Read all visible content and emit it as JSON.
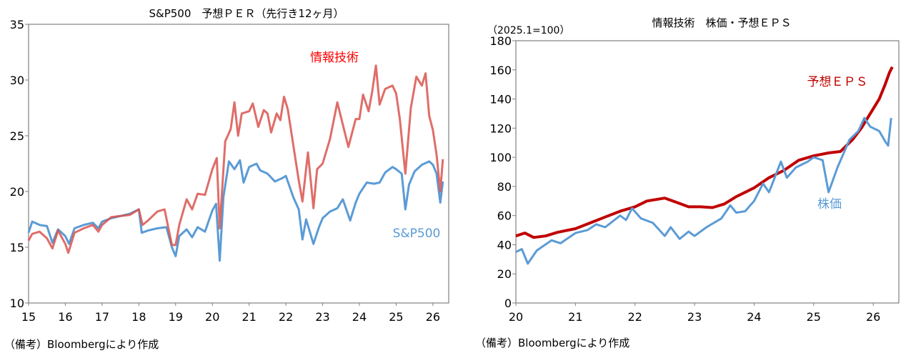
{
  "chart_data": [
    {
      "type": "line",
      "title": "S&P500　予想ＰＥＲ（先行き12ヶ月）",
      "xlabel": "",
      "ylabel": "",
      "xlim": [
        2015,
        2026.43
      ],
      "ylim": [
        10,
        35
      ],
      "yticks": [
        10,
        15,
        20,
        25,
        30,
        35
      ],
      "xticks": [
        {
          "v": 2015,
          "label": "15"
        },
        {
          "v": 2016,
          "label": "16"
        },
        {
          "v": 2017,
          "label": "17"
        },
        {
          "v": 2018,
          "label": "18"
        },
        {
          "v": 2019,
          "label": "19"
        },
        {
          "v": 2020,
          "label": "20"
        },
        {
          "v": 2021,
          "label": "21"
        },
        {
          "v": 2022,
          "label": "22"
        },
        {
          "v": 2023,
          "label": "23"
        },
        {
          "v": 2024,
          "label": "24"
        },
        {
          "v": 2025,
          "label": "25"
        },
        {
          "v": 2026,
          "label": "26"
        }
      ],
      "source": "（備考）Bloombergにより作成",
      "grid": false,
      "series": [
        {
          "name": "S&P500",
          "color": "#5b9bd5",
          "x": [
            2015.0,
            2015.1,
            2015.3,
            2015.5,
            2015.65,
            2015.8,
            2016.0,
            2016.1,
            2016.25,
            2016.5,
            2016.75,
            2016.9,
            2017.0,
            2017.25,
            2017.5,
            2017.75,
            2018.0,
            2018.08,
            2018.25,
            2018.5,
            2018.75,
            2018.9,
            2019.0,
            2019.1,
            2019.3,
            2019.45,
            2019.6,
            2019.8,
            2020.0,
            2020.1,
            2020.2,
            2020.3,
            2020.45,
            2020.6,
            2020.75,
            2020.85,
            2021.0,
            2021.2,
            2021.3,
            2021.5,
            2021.7,
            2021.9,
            2022.0,
            2022.2,
            2022.35,
            2022.45,
            2022.55,
            2022.75,
            2022.9,
            2023.0,
            2023.2,
            2023.4,
            2023.55,
            2023.75,
            2023.9,
            2024.0,
            2024.2,
            2024.4,
            2024.55,
            2024.7,
            2024.9,
            2025.0,
            2025.15,
            2025.25,
            2025.35,
            2025.5,
            2025.7,
            2025.9,
            2026.0,
            2026.1,
            2026.2,
            2026.27
          ],
          "y": [
            16.3,
            17.3,
            17.0,
            16.9,
            15.4,
            16.6,
            16.0,
            15.3,
            16.7,
            17.0,
            17.2,
            16.7,
            17.3,
            17.6,
            17.8,
            18.0,
            18.4,
            16.3,
            16.5,
            16.7,
            16.8,
            15.0,
            14.2,
            16.0,
            16.6,
            15.9,
            16.8,
            16.4,
            18.3,
            18.9,
            13.8,
            19.5,
            22.7,
            22.0,
            22.8,
            20.8,
            22.2,
            22.5,
            21.9,
            21.6,
            20.9,
            21.2,
            21.4,
            19.5,
            18.4,
            15.7,
            17.5,
            15.3,
            16.8,
            17.6,
            18.2,
            18.5,
            19.3,
            17.4,
            19.0,
            19.8,
            20.8,
            20.7,
            20.8,
            21.7,
            22.2,
            22.0,
            21.6,
            18.4,
            20.6,
            21.8,
            22.4,
            22.7,
            22.4,
            21.6,
            19.0,
            20.9
          ]
        },
        {
          "name": "情報技術",
          "color": "#d9534f",
          "x": [
            2015.0,
            2015.1,
            2015.3,
            2015.5,
            2015.65,
            2015.8,
            2016.0,
            2016.08,
            2016.25,
            2016.5,
            2016.75,
            2016.9,
            2017.0,
            2017.25,
            2017.5,
            2017.75,
            2018.0,
            2018.1,
            2018.25,
            2018.5,
            2018.7,
            2018.9,
            2019.0,
            2019.1,
            2019.3,
            2019.45,
            2019.6,
            2019.8,
            2020.0,
            2020.12,
            2020.2,
            2020.35,
            2020.5,
            2020.6,
            2020.7,
            2020.8,
            2021.0,
            2021.1,
            2021.25,
            2021.4,
            2021.5,
            2021.6,
            2021.75,
            2021.85,
            2021.95,
            2022.05,
            2022.2,
            2022.35,
            2022.45,
            2022.6,
            2022.75,
            2022.85,
            2023.0,
            2023.2,
            2023.4,
            2023.55,
            2023.7,
            2023.9,
            2024.0,
            2024.1,
            2024.25,
            2024.35,
            2024.45,
            2024.55,
            2024.7,
            2024.9,
            2025.0,
            2025.1,
            2025.25,
            2025.4,
            2025.55,
            2025.7,
            2025.8,
            2025.9,
            2026.0,
            2026.1,
            2026.2,
            2026.27
          ],
          "y": [
            15.6,
            16.2,
            16.4,
            15.8,
            14.9,
            16.5,
            15.3,
            14.5,
            16.3,
            16.7,
            17.0,
            16.4,
            17.0,
            17.7,
            17.8,
            17.9,
            18.4,
            17.0,
            17.4,
            18.2,
            18.4,
            15.2,
            15.2,
            17.0,
            19.3,
            18.4,
            19.8,
            19.7,
            22.0,
            23.0,
            16.7,
            24.5,
            25.6,
            28.0,
            25.0,
            27.0,
            27.2,
            27.9,
            25.8,
            27.3,
            27.0,
            25.3,
            27.0,
            26.4,
            28.5,
            27.4,
            24.2,
            21.0,
            19.1,
            23.5,
            18.5,
            22.0,
            22.5,
            24.7,
            28.0,
            26.0,
            24.0,
            26.5,
            26.5,
            28.7,
            27.2,
            29.0,
            31.3,
            27.8,
            29.2,
            29.5,
            28.8,
            26.5,
            21.6,
            27.5,
            30.3,
            29.5,
            30.6,
            26.8,
            25.5,
            23.3,
            20.0,
            22.9
          ]
        }
      ]
    },
    {
      "type": "line",
      "title": "情報技術　株価・予想ＥＰＳ",
      "ylabel": "（2025.1=100）",
      "xlabel": "",
      "xlim": [
        2020,
        2026.43
      ],
      "ylim": [
        0,
        180
      ],
      "yticks": [
        0,
        20,
        40,
        60,
        80,
        100,
        120,
        140,
        160,
        180
      ],
      "xticks": [
        {
          "v": 2020,
          "label": "20"
        },
        {
          "v": 2021,
          "label": "21"
        },
        {
          "v": 2022,
          "label": "22"
        },
        {
          "v": 2023,
          "label": "23"
        },
        {
          "v": 2024,
          "label": "24"
        },
        {
          "v": 2025,
          "label": "25"
        },
        {
          "v": 2026,
          "label": "26"
        }
      ],
      "source": "（備考）Bloombergにより作成",
      "grid": false,
      "series": [
        {
          "name": "予想ＥＰＳ",
          "color": "#c00000",
          "x": [
            2020.0,
            2020.15,
            2020.3,
            2020.5,
            2020.7,
            2021.0,
            2021.25,
            2021.5,
            2021.75,
            2022.0,
            2022.2,
            2022.5,
            2022.7,
            2022.9,
            2023.1,
            2023.3,
            2023.5,
            2023.7,
            2024.0,
            2024.25,
            2024.5,
            2024.75,
            2025.0,
            2025.25,
            2025.45,
            2025.65,
            2025.8,
            2025.95,
            2026.1,
            2026.2,
            2026.27,
            2026.32
          ],
          "y": [
            46,
            48,
            45,
            46,
            48.5,
            51,
            55,
            59,
            63,
            66,
            70,
            72,
            69,
            66,
            66,
            65.5,
            68,
            73,
            79,
            86,
            91,
            98,
            101,
            103,
            104,
            112,
            120,
            130,
            140,
            150,
            158,
            162
          ]
        },
        {
          "name": "株価",
          "color": "#5b9bd5",
          "x": [
            2020.0,
            2020.1,
            2020.2,
            2020.35,
            2020.6,
            2020.75,
            2021.0,
            2021.2,
            2021.35,
            2021.5,
            2021.75,
            2021.85,
            2021.95,
            2022.1,
            2022.3,
            2022.5,
            2022.6,
            2022.75,
            2022.9,
            2023.0,
            2023.2,
            2023.45,
            2023.6,
            2023.7,
            2023.85,
            2024.0,
            2024.15,
            2024.25,
            2024.45,
            2024.55,
            2024.7,
            2024.9,
            2025.0,
            2025.15,
            2025.25,
            2025.4,
            2025.6,
            2025.75,
            2025.85,
            2025.95,
            2026.1,
            2026.2,
            2026.25,
            2026.3
          ],
          "y": [
            35,
            37,
            27,
            36,
            43,
            41,
            48,
            50,
            54,
            52,
            60,
            57,
            65,
            58,
            55,
            46,
            52,
            44,
            49,
            46,
            52,
            58,
            67,
            62,
            63,
            70,
            82,
            76,
            97,
            86,
            93,
            97,
            100,
            98,
            76,
            93,
            112,
            118,
            127,
            121,
            118,
            111,
            108,
            127
          ]
        }
      ]
    }
  ]
}
